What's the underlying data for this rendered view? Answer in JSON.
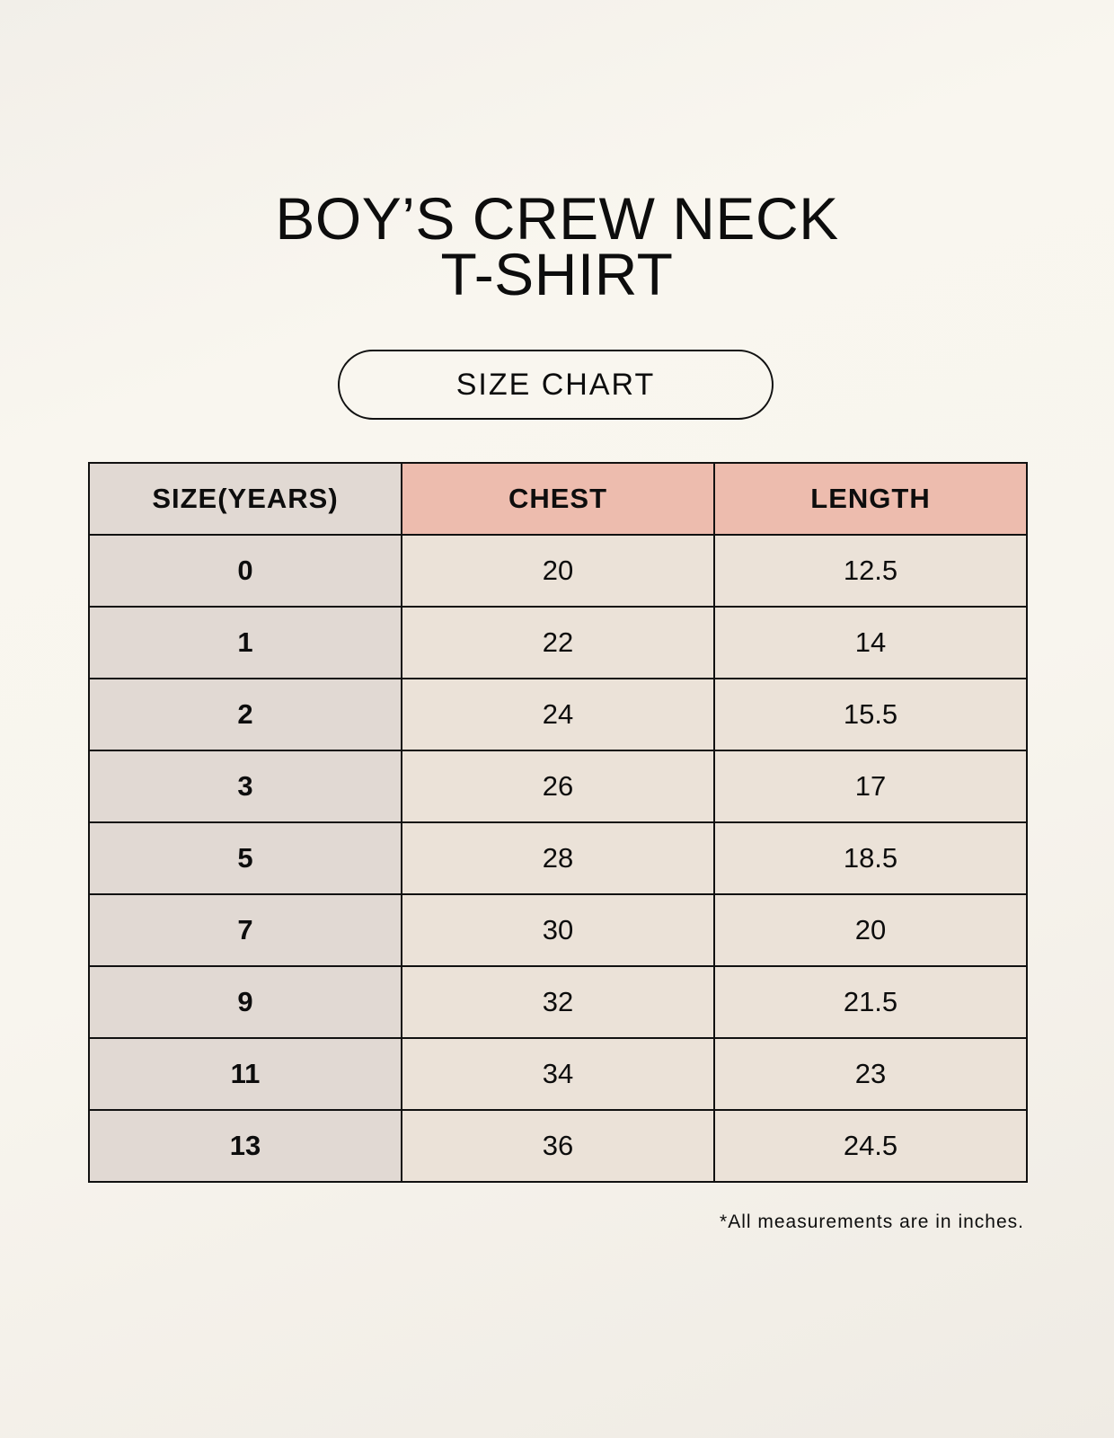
{
  "title": {
    "line1": "BOY’S CREW NECK",
    "line2": "T-SHIRT"
  },
  "badge": "SIZE CHART",
  "table": {
    "headers": [
      "SIZE(YEARS)",
      "CHEST",
      "LENGTH"
    ],
    "rows": [
      [
        "0",
        "20",
        "12.5"
      ],
      [
        "1",
        "22",
        "14"
      ],
      [
        "2",
        "24",
        "15.5"
      ],
      [
        "3",
        "26",
        "17"
      ],
      [
        "5",
        "28",
        "18.5"
      ],
      [
        "7",
        "30",
        "20"
      ],
      [
        "9",
        "32",
        "21.5"
      ],
      [
        "11",
        "34",
        "23"
      ],
      [
        "13",
        "36",
        "24.5"
      ]
    ]
  },
  "footnote": "*All measurements are in inches.",
  "colors": {
    "header_size": "#e1d9d3",
    "header_measure": "#edbcae",
    "cell": "#ebe2d8",
    "background": "#f8f5ee"
  }
}
